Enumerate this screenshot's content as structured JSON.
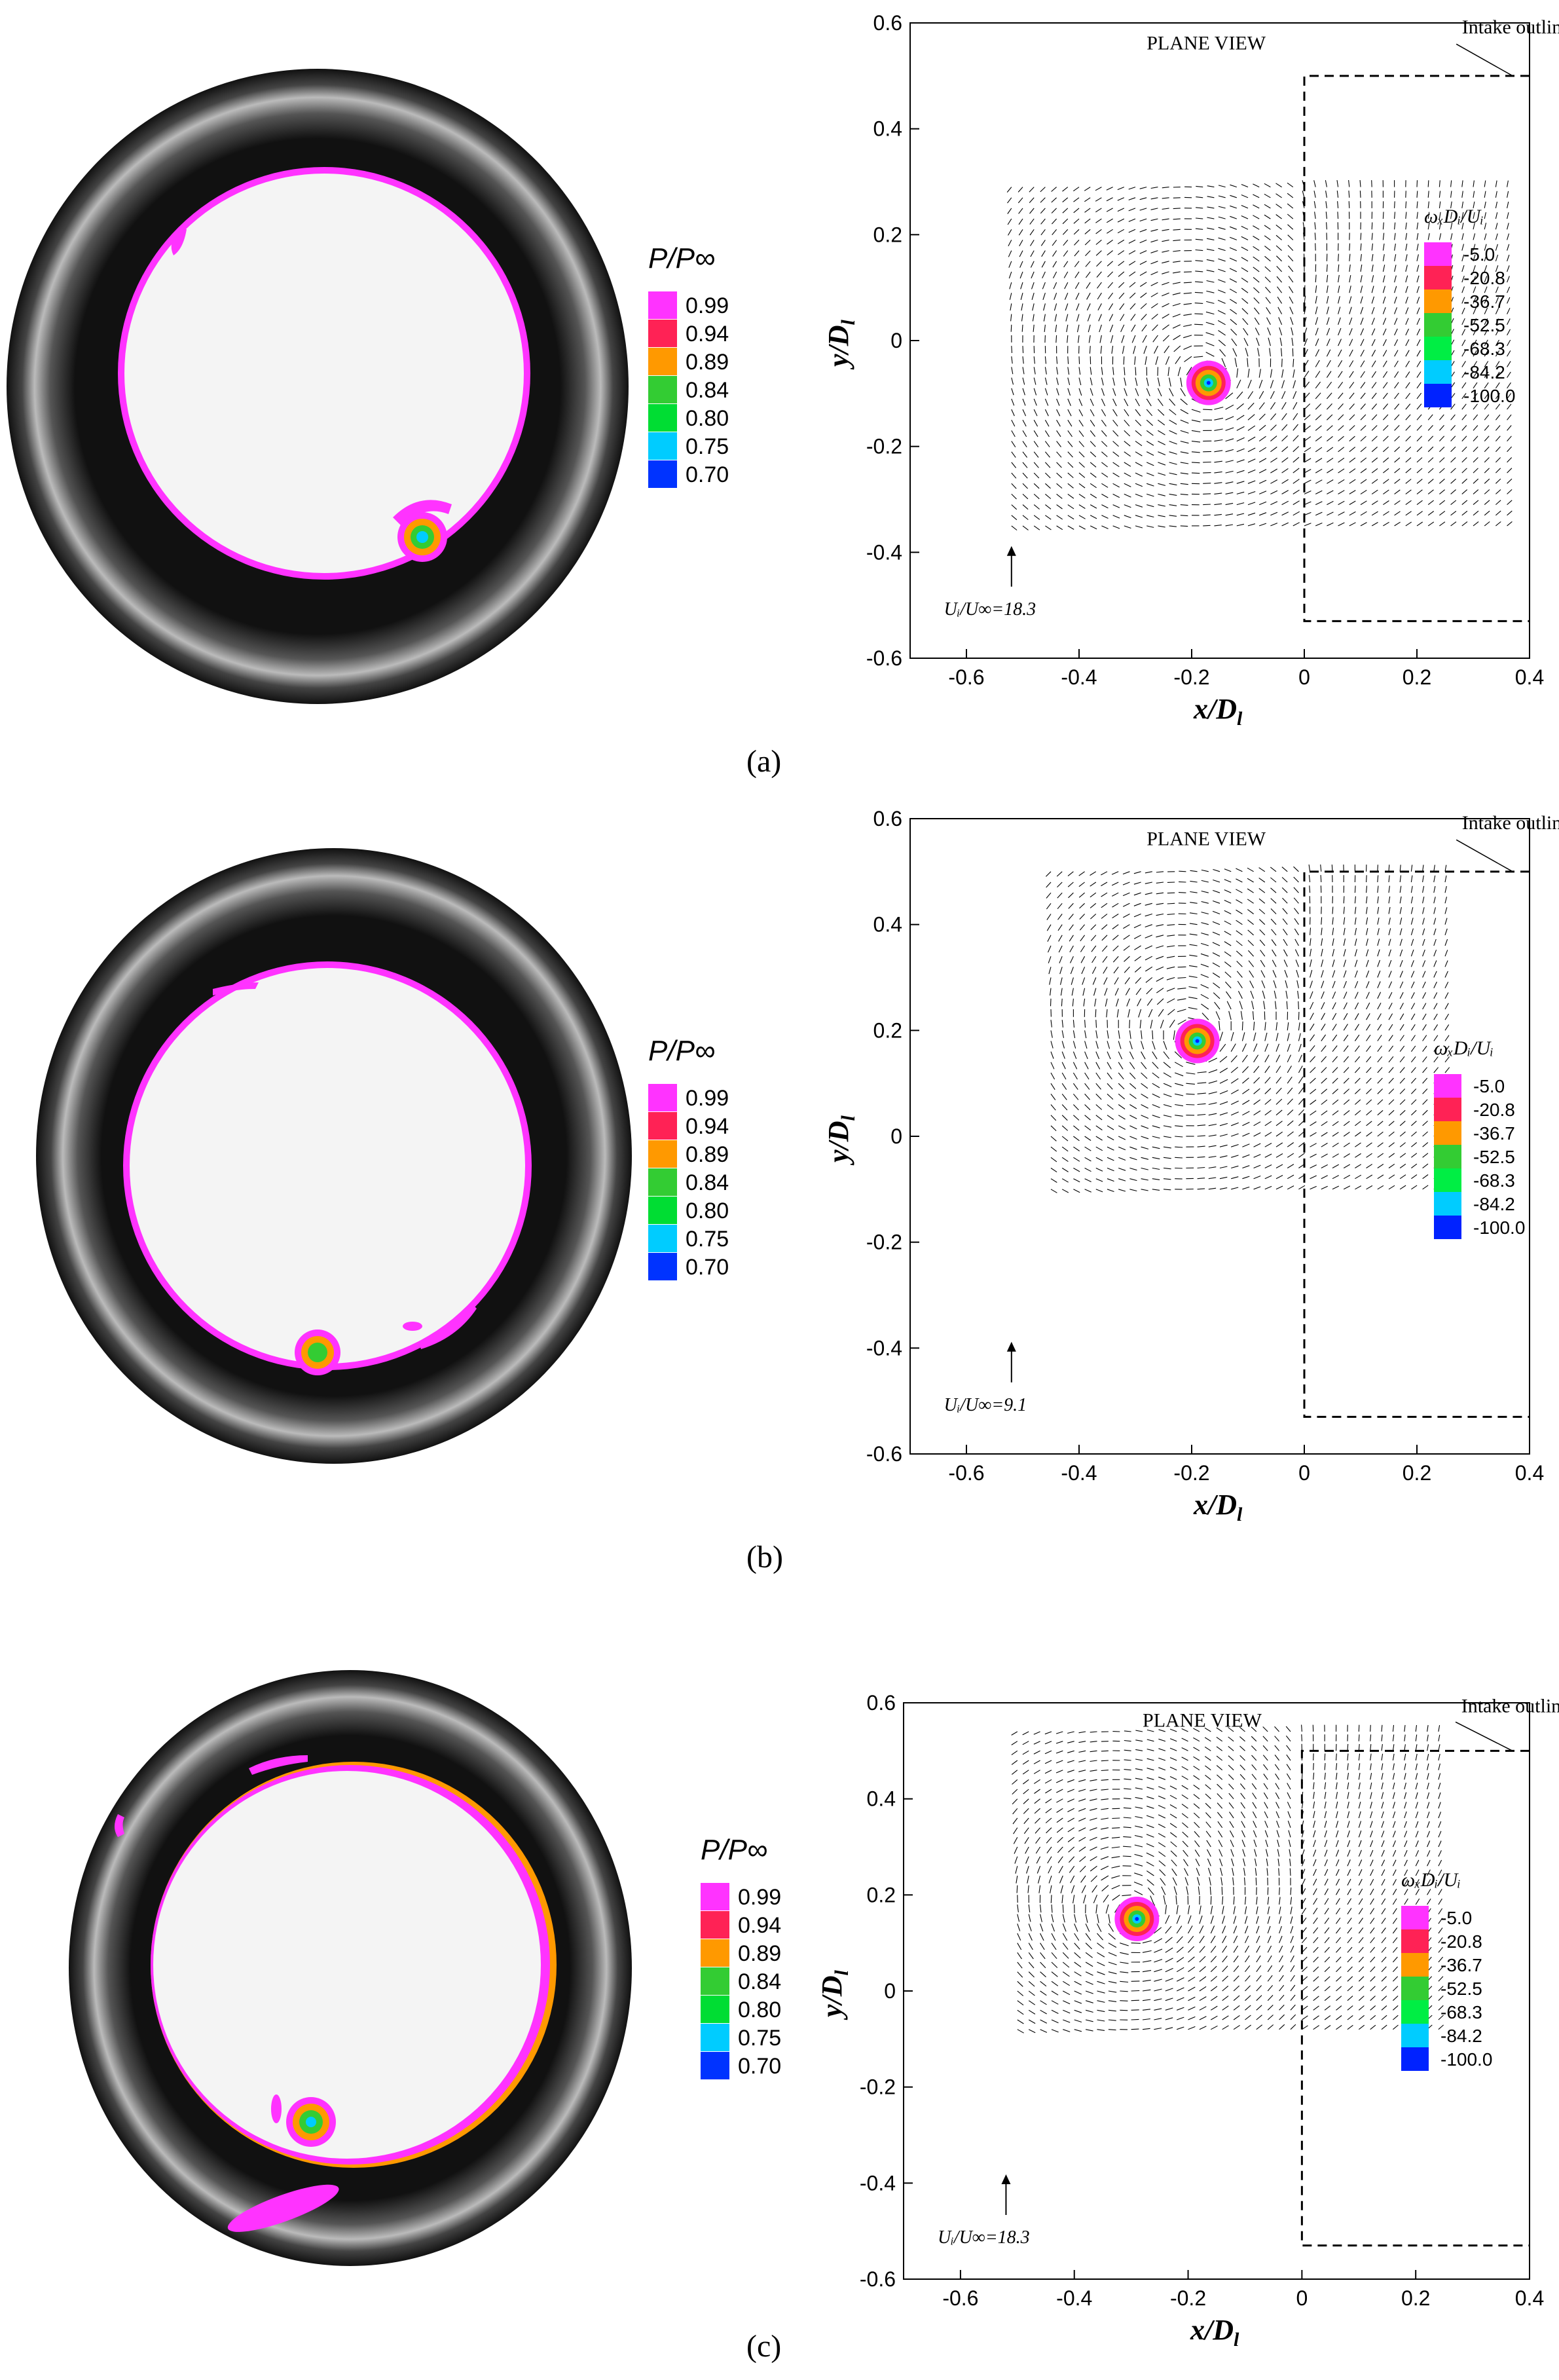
{
  "pressure_legend": {
    "title": "P/P∞",
    "levels": [
      "0.99",
      "0.94",
      "0.89",
      "0.84",
      "0.80",
      "0.75",
      "0.70"
    ],
    "colors": [
      "#ff33ff",
      "#ff2255",
      "#ff9900",
      "#33cc33",
      "#00dd33",
      "#00ccff",
      "#0033ff"
    ]
  },
  "vorticity_legend": {
    "title": "ωₓDᵢ/Uᵢ",
    "levels": [
      "-5.0",
      "-20.8",
      "-36.7",
      "-52.5",
      "-68.3",
      "-84.2",
      "-100.0"
    ],
    "colors": [
      "#ff33ff",
      "#ff2255",
      "#ff9900",
      "#33cc33",
      "#00ee44",
      "#00ccff",
      "#0022ff"
    ]
  },
  "plot_text": {
    "plane_view": "PLANE VIEW",
    "intake_outline": "Intake outline",
    "xlabel": "x/D",
    "xlabel_sub": "l",
    "ylabel": "y/D",
    "ylabel_sub": "l"
  },
  "chart_data": [
    {
      "type": "scatter",
      "panel": "a",
      "x_ticks": [
        "-0.6",
        "-0.4",
        "-0.2",
        "0",
        "0.2",
        "0.4"
      ],
      "y_ticks": [
        "0.6",
        "0.4",
        "0.2",
        "0",
        "-0.2",
        "-0.4",
        "-0.6"
      ],
      "xlim": [
        -0.7,
        0.4
      ],
      "ylim": [
        -0.6,
        0.6
      ],
      "vortex_center": [
        -0.17,
        -0.08
      ],
      "vector_region": {
        "x": [
          -0.52,
          0.36
        ],
        "y": [
          -0.35,
          0.3
        ]
      },
      "reference_vector": "Uᵢ/U∞=18.3",
      "intake_outline": {
        "x_wall": 0.0,
        "y_top": 0.5,
        "y_bottom": -0.53
      }
    },
    {
      "type": "scatter",
      "panel": "b",
      "x_ticks": [
        "-0.6",
        "-0.4",
        "-0.2",
        "0",
        "0.2",
        "0.4"
      ],
      "y_ticks": [
        "0.6",
        "0.4",
        "0.2",
        "0",
        "-0.2",
        "-0.4",
        "-0.6"
      ],
      "xlim": [
        -0.7,
        0.4
      ],
      "ylim": [
        -0.6,
        0.6
      ],
      "vortex_center": [
        -0.19,
        0.18
      ],
      "vector_region": {
        "x": [
          -0.45,
          0.25
        ],
        "y": [
          -0.1,
          0.5
        ]
      },
      "reference_vector": "Uᵢ/U∞=9.1",
      "intake_outline": {
        "x_wall": 0.0,
        "y_top": 0.5,
        "y_bottom": -0.53
      }
    },
    {
      "type": "scatter",
      "panel": "c",
      "x_ticks": [
        "-0.6",
        "-0.4",
        "-0.2",
        "0",
        "0.2",
        "0.4"
      ],
      "y_ticks": [
        "0.6",
        "0.4",
        "0.2",
        "0",
        "-0.2",
        "-0.4",
        "-0.6"
      ],
      "xlim": [
        -0.7,
        0.4
      ],
      "ylim": [
        -0.6,
        0.6
      ],
      "vortex_center": [
        -0.29,
        0.15
      ],
      "vector_region": {
        "x": [
          -0.5,
          0.25
        ],
        "y": [
          -0.08,
          0.55
        ]
      },
      "reference_vector": "Uᵢ/U∞=18.3",
      "intake_outline": {
        "x_wall": 0.0,
        "y_top": 0.5,
        "y_bottom": -0.53
      }
    }
  ],
  "captions": [
    "(a)",
    "(b)",
    "(c)"
  ]
}
